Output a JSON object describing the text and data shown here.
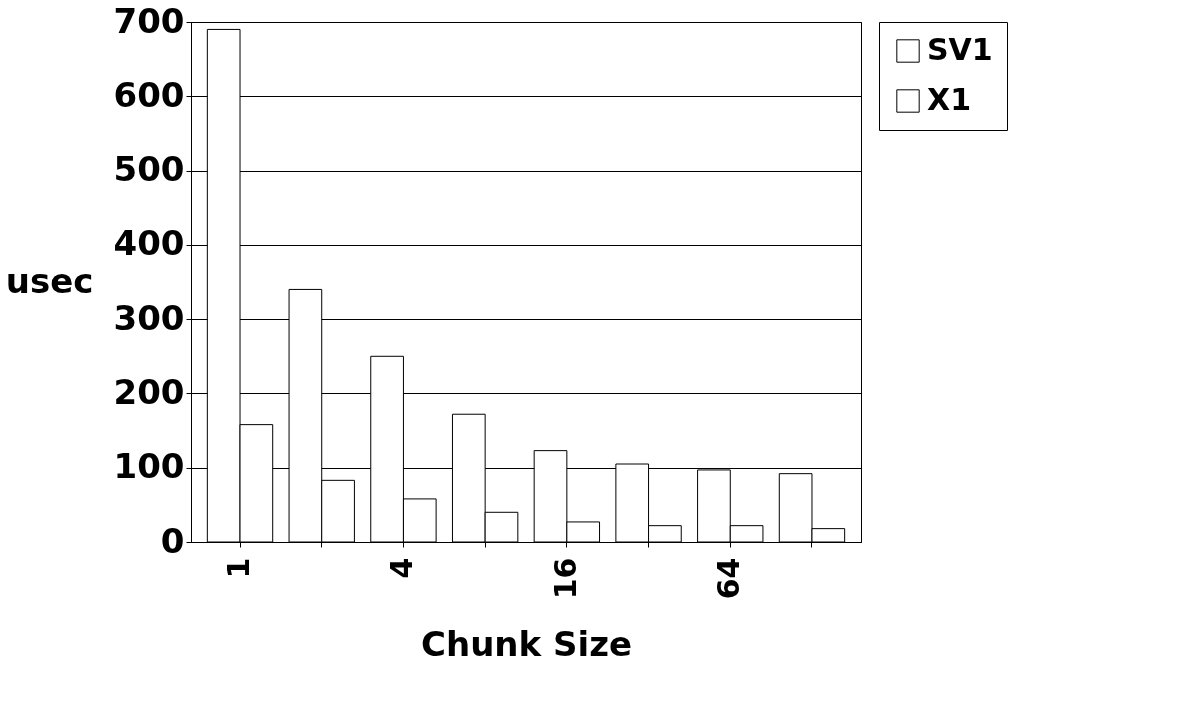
{
  "chart_data": {
    "type": "bar",
    "xlabel": "Chunk  Size",
    "ylabel": "usec",
    "categories": [
      "1",
      null,
      "4",
      null,
      "16",
      null,
      "64",
      null
    ],
    "series": [
      {
        "name": "SV1",
        "color": "#ffffff",
        "values": [
          690,
          340,
          250,
          172,
          123,
          105,
          97,
          92
        ]
      },
      {
        "name": "X1",
        "color": "#ffffff",
        "values": [
          158,
          83,
          58,
          40,
          27,
          22,
          22,
          18
        ]
      }
    ],
    "ylim": [
      0,
      700
    ],
    "yticks": [
      0,
      100,
      200,
      300,
      400,
      500,
      600,
      700
    ],
    "grid": "y",
    "legend": "right"
  }
}
